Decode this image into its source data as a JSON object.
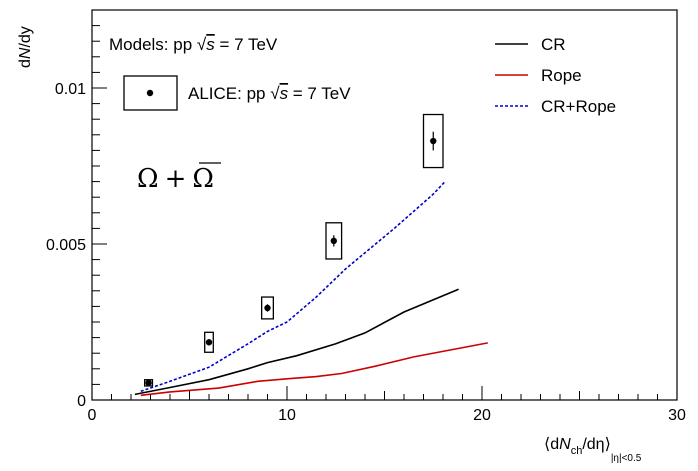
{
  "chart_data": {
    "type": "line",
    "xlabel": {
      "pre": "⟨d",
      "n": "N",
      "ch": "ch",
      "mid": "/dη⟩",
      "sub": "|η|<0.5"
    },
    "ylabel": {
      "pre": "d",
      "n": "N",
      "post": "/dy"
    },
    "xlim": [
      0,
      30
    ],
    "ylim": [
      0,
      0.0125
    ],
    "x_ticks": [
      0,
      10,
      20,
      30
    ],
    "x_tick_labels": [
      "0",
      "10",
      "20",
      "30"
    ],
    "y_ticks": [
      0,
      0.005,
      0.01
    ],
    "y_tick_labels": [
      "0",
      "0.005",
      "0.01"
    ],
    "grid": false,
    "legend_position": "top-right",
    "annotations": {
      "models_text": {
        "pre": "Models: pp ",
        "s": "s",
        "post": " = 7 TeV"
      },
      "alice_text": {
        "pre": "ALICE: pp ",
        "s": "s",
        "post": " = 7 TeV"
      },
      "particle_label": {
        "omega": "Ω",
        "plus": "+",
        "omega_bar": "Ω"
      }
    },
    "series": [
      {
        "name": "CR",
        "color": "#000000",
        "style": "solid",
        "x": [
          2.2,
          4.0,
          6.0,
          8.0,
          9.0,
          10.5,
          12.5,
          14.0,
          16.0,
          18.8
        ],
        "y": [
          0.00018,
          0.0004,
          0.00065,
          0.001,
          0.0012,
          0.00142,
          0.0018,
          0.00215,
          0.00282,
          0.00355
        ]
      },
      {
        "name": "Rope",
        "color": "#cc0000",
        "style": "solid",
        "x": [
          2.5,
          4.0,
          6.5,
          8.5,
          10.0,
          11.5,
          12.8,
          14.5,
          16.5,
          18.5,
          20.3
        ],
        "y": [
          0.00015,
          0.00026,
          0.00038,
          0.0006,
          0.00068,
          0.00075,
          0.00085,
          0.00108,
          0.00138,
          0.00162,
          0.00183
        ]
      },
      {
        "name": "CR+Rope",
        "color": "#0000cc",
        "style": "dashed",
        "x": [
          2.5,
          4.0,
          6.0,
          8.0,
          9.0,
          10.0,
          11.5,
          13.0,
          15.5,
          17.5,
          18.1
        ],
        "y": [
          0.00028,
          0.0006,
          0.00105,
          0.0018,
          0.0022,
          0.0025,
          0.0033,
          0.0042,
          0.0055,
          0.0066,
          0.007
        ]
      },
      {
        "name": "ALICE: pp √s = 7 TeV",
        "type": "points",
        "color": "#000000",
        "x": [
          2.9,
          6.0,
          9.0,
          12.4,
          17.5
        ],
        "y": [
          0.00055,
          0.00185,
          0.00295,
          0.0051,
          0.0083
        ],
        "stat_err": [
          5e-05,
          0.0001,
          0.00012,
          0.00018,
          0.0003
        ],
        "sys_err": [
          0.0001,
          0.00032,
          0.00035,
          0.00058,
          0.00085
        ],
        "sys_half_width_x": [
          0.2,
          0.22,
          0.3,
          0.4,
          0.5
        ]
      }
    ]
  }
}
